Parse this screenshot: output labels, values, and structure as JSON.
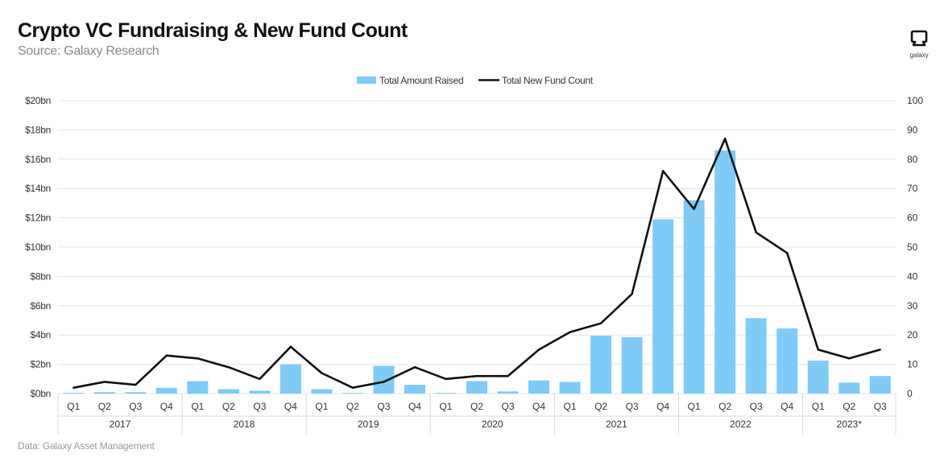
{
  "header": {
    "title": "Crypto VC Fundraising & New Fund Count",
    "subtitle": "Source: Galaxy Research"
  },
  "footer": {
    "note": "Data: Galaxy Asset Management"
  },
  "logo": {
    "text": "galaxy",
    "icon": "galaxy-logo-icon"
  },
  "colors": {
    "bar": "#7ecbf7",
    "line": "#111111",
    "grid": "#e4e4e4",
    "text": "#333333"
  },
  "chart_data": {
    "type": "bar",
    "title": "Crypto VC Fundraising & New Fund Count",
    "legend": {
      "placement": "top-center",
      "items": [
        "Total Amount Raised",
        "Total New Fund Count"
      ]
    },
    "left_axis": {
      "ylim": [
        0,
        20
      ],
      "ticks": [
        "$0bn",
        "$2bn",
        "$4bn",
        "$6bn",
        "$8bn",
        "$10bn",
        "$12bn",
        "$14bn",
        "$16bn",
        "$18bn",
        "$20bn"
      ]
    },
    "right_axis": {
      "ylim": [
        0,
        100
      ],
      "ticks": [
        "0",
        "10",
        "20",
        "30",
        "40",
        "50",
        "60",
        "70",
        "80",
        "90",
        "100"
      ]
    },
    "quarters": [
      "Q1",
      "Q2",
      "Q3",
      "Q4",
      "Q1",
      "Q2",
      "Q3",
      "Q4",
      "Q1",
      "Q2",
      "Q3",
      "Q4",
      "Q1",
      "Q2",
      "Q3",
      "Q4",
      "Q1",
      "Q2",
      "Q3",
      "Q4",
      "Q1",
      "Q2",
      "Q3",
      "Q4",
      "Q1",
      "Q2",
      "Q3"
    ],
    "years": [
      {
        "label": "2017",
        "count": 4
      },
      {
        "label": "2018",
        "count": 4
      },
      {
        "label": "2019",
        "count": 4
      },
      {
        "label": "2020",
        "count": 4
      },
      {
        "label": "2021",
        "count": 4
      },
      {
        "label": "2022",
        "count": 4
      },
      {
        "label": "2023*",
        "count": 3
      }
    ],
    "series": [
      {
        "name": "Total Amount Raised",
        "type": "bar",
        "axis": "left",
        "unit": "$bn",
        "values": [
          0.05,
          0.1,
          0.1,
          0.4,
          0.85,
          0.3,
          0.2,
          2.0,
          0.3,
          0.05,
          1.9,
          0.6,
          0.05,
          0.85,
          0.15,
          0.9,
          0.8,
          3.95,
          3.85,
          11.9,
          13.2,
          16.6,
          5.15,
          4.45,
          2.25,
          0.75,
          1.2
        ]
      },
      {
        "name": "Total New Fund Count",
        "type": "line",
        "axis": "right",
        "values": [
          2,
          4,
          3,
          13,
          12,
          9,
          5,
          16,
          7,
          2,
          4,
          9,
          5,
          6,
          6,
          15,
          21,
          24,
          34,
          76,
          63,
          87,
          55,
          48,
          15,
          12,
          15
        ]
      }
    ]
  }
}
